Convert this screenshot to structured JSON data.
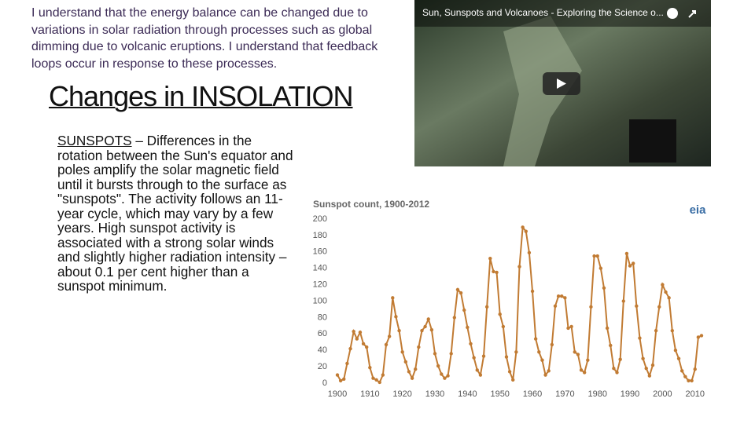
{
  "objective": "I understand that the energy balance can be changed due to variations in solar radiation through processes such as global dimming due to volcanic eruptions. I understand that feedback loops occur in response to these processes.",
  "heading": "Changes in INSOLATION",
  "body": {
    "term": "SUNSPOTS",
    "text": "– Differences in the rotation between the Sun's equator and poles amplify the solar magnetic field until it bursts through to the surface as \"sunspots\". The activity follows an 11-year cycle, which may vary by a few years. High sunspot activity is associated with a strong solar winds and slightly higher radiation intensity – about 0.1 per cent higher than a sunspot minimum."
  },
  "video": {
    "title": "Sun, Sunspots and Volcanoes - Exploring the Science o..."
  },
  "chart_data": {
    "type": "line",
    "title": "Sunspot count, 1900-2012",
    "logo": "eia",
    "color": "#c17b33",
    "grid": false,
    "x": [
      1900,
      1901,
      1902,
      1903,
      1904,
      1905,
      1906,
      1907,
      1908,
      1909,
      1910,
      1911,
      1912,
      1913,
      1914,
      1915,
      1916,
      1917,
      1918,
      1919,
      1920,
      1921,
      1922,
      1923,
      1924,
      1925,
      1926,
      1927,
      1928,
      1929,
      1930,
      1931,
      1932,
      1933,
      1934,
      1935,
      1936,
      1937,
      1938,
      1939,
      1940,
      1941,
      1942,
      1943,
      1944,
      1945,
      1946,
      1947,
      1948,
      1949,
      1950,
      1951,
      1952,
      1953,
      1954,
      1955,
      1956,
      1957,
      1958,
      1959,
      1960,
      1961,
      1962,
      1963,
      1964,
      1965,
      1966,
      1967,
      1968,
      1969,
      1970,
      1971,
      1972,
      1973,
      1974,
      1975,
      1976,
      1977,
      1978,
      1979,
      1980,
      1981,
      1982,
      1983,
      1984,
      1985,
      1986,
      1987,
      1988,
      1989,
      1990,
      1991,
      1992,
      1993,
      1994,
      1995,
      1996,
      1997,
      1998,
      1999,
      2000,
      2001,
      2002,
      2003,
      2004,
      2005,
      2006,
      2007,
      2008,
      2009,
      2010,
      2011,
      2012
    ],
    "values": [
      10,
      3,
      5,
      24,
      42,
      63,
      54,
      62,
      48,
      44,
      19,
      6,
      4,
      1,
      10,
      47,
      57,
      104,
      81,
      64,
      38,
      26,
      14,
      6,
      17,
      44,
      64,
      69,
      78,
      65,
      36,
      21,
      11,
      6,
      9,
      36,
      80,
      114,
      110,
      89,
      68,
      48,
      31,
      16,
      10,
      33,
      93,
      152,
      136,
      135,
      84,
      69,
      32,
      14,
      4,
      38,
      142,
      190,
      185,
      159,
      112,
      54,
      38,
      28,
      10,
      15,
      47,
      94,
      106,
      106,
      104,
      67,
      69,
      38,
      35,
      16,
      13,
      28,
      93,
      155,
      155,
      140,
      116,
      67,
      46,
      18,
      13,
      29,
      100,
      158,
      143,
      146,
      94,
      55,
      30,
      18,
      9,
      22,
      64,
      93,
      120,
      111,
      104,
      64,
      40,
      30,
      15,
      8,
      3,
      3,
      17,
      56,
      58
    ],
    "xlim": [
      1900,
      2012
    ],
    "xticks": [
      1900,
      1910,
      1920,
      1930,
      1940,
      1950,
      1960,
      1970,
      1980,
      1990,
      2000,
      2010
    ],
    "ylim": [
      0,
      200
    ],
    "yticks": [
      0,
      20,
      40,
      60,
      80,
      100,
      120,
      140,
      160,
      180,
      200
    ]
  }
}
